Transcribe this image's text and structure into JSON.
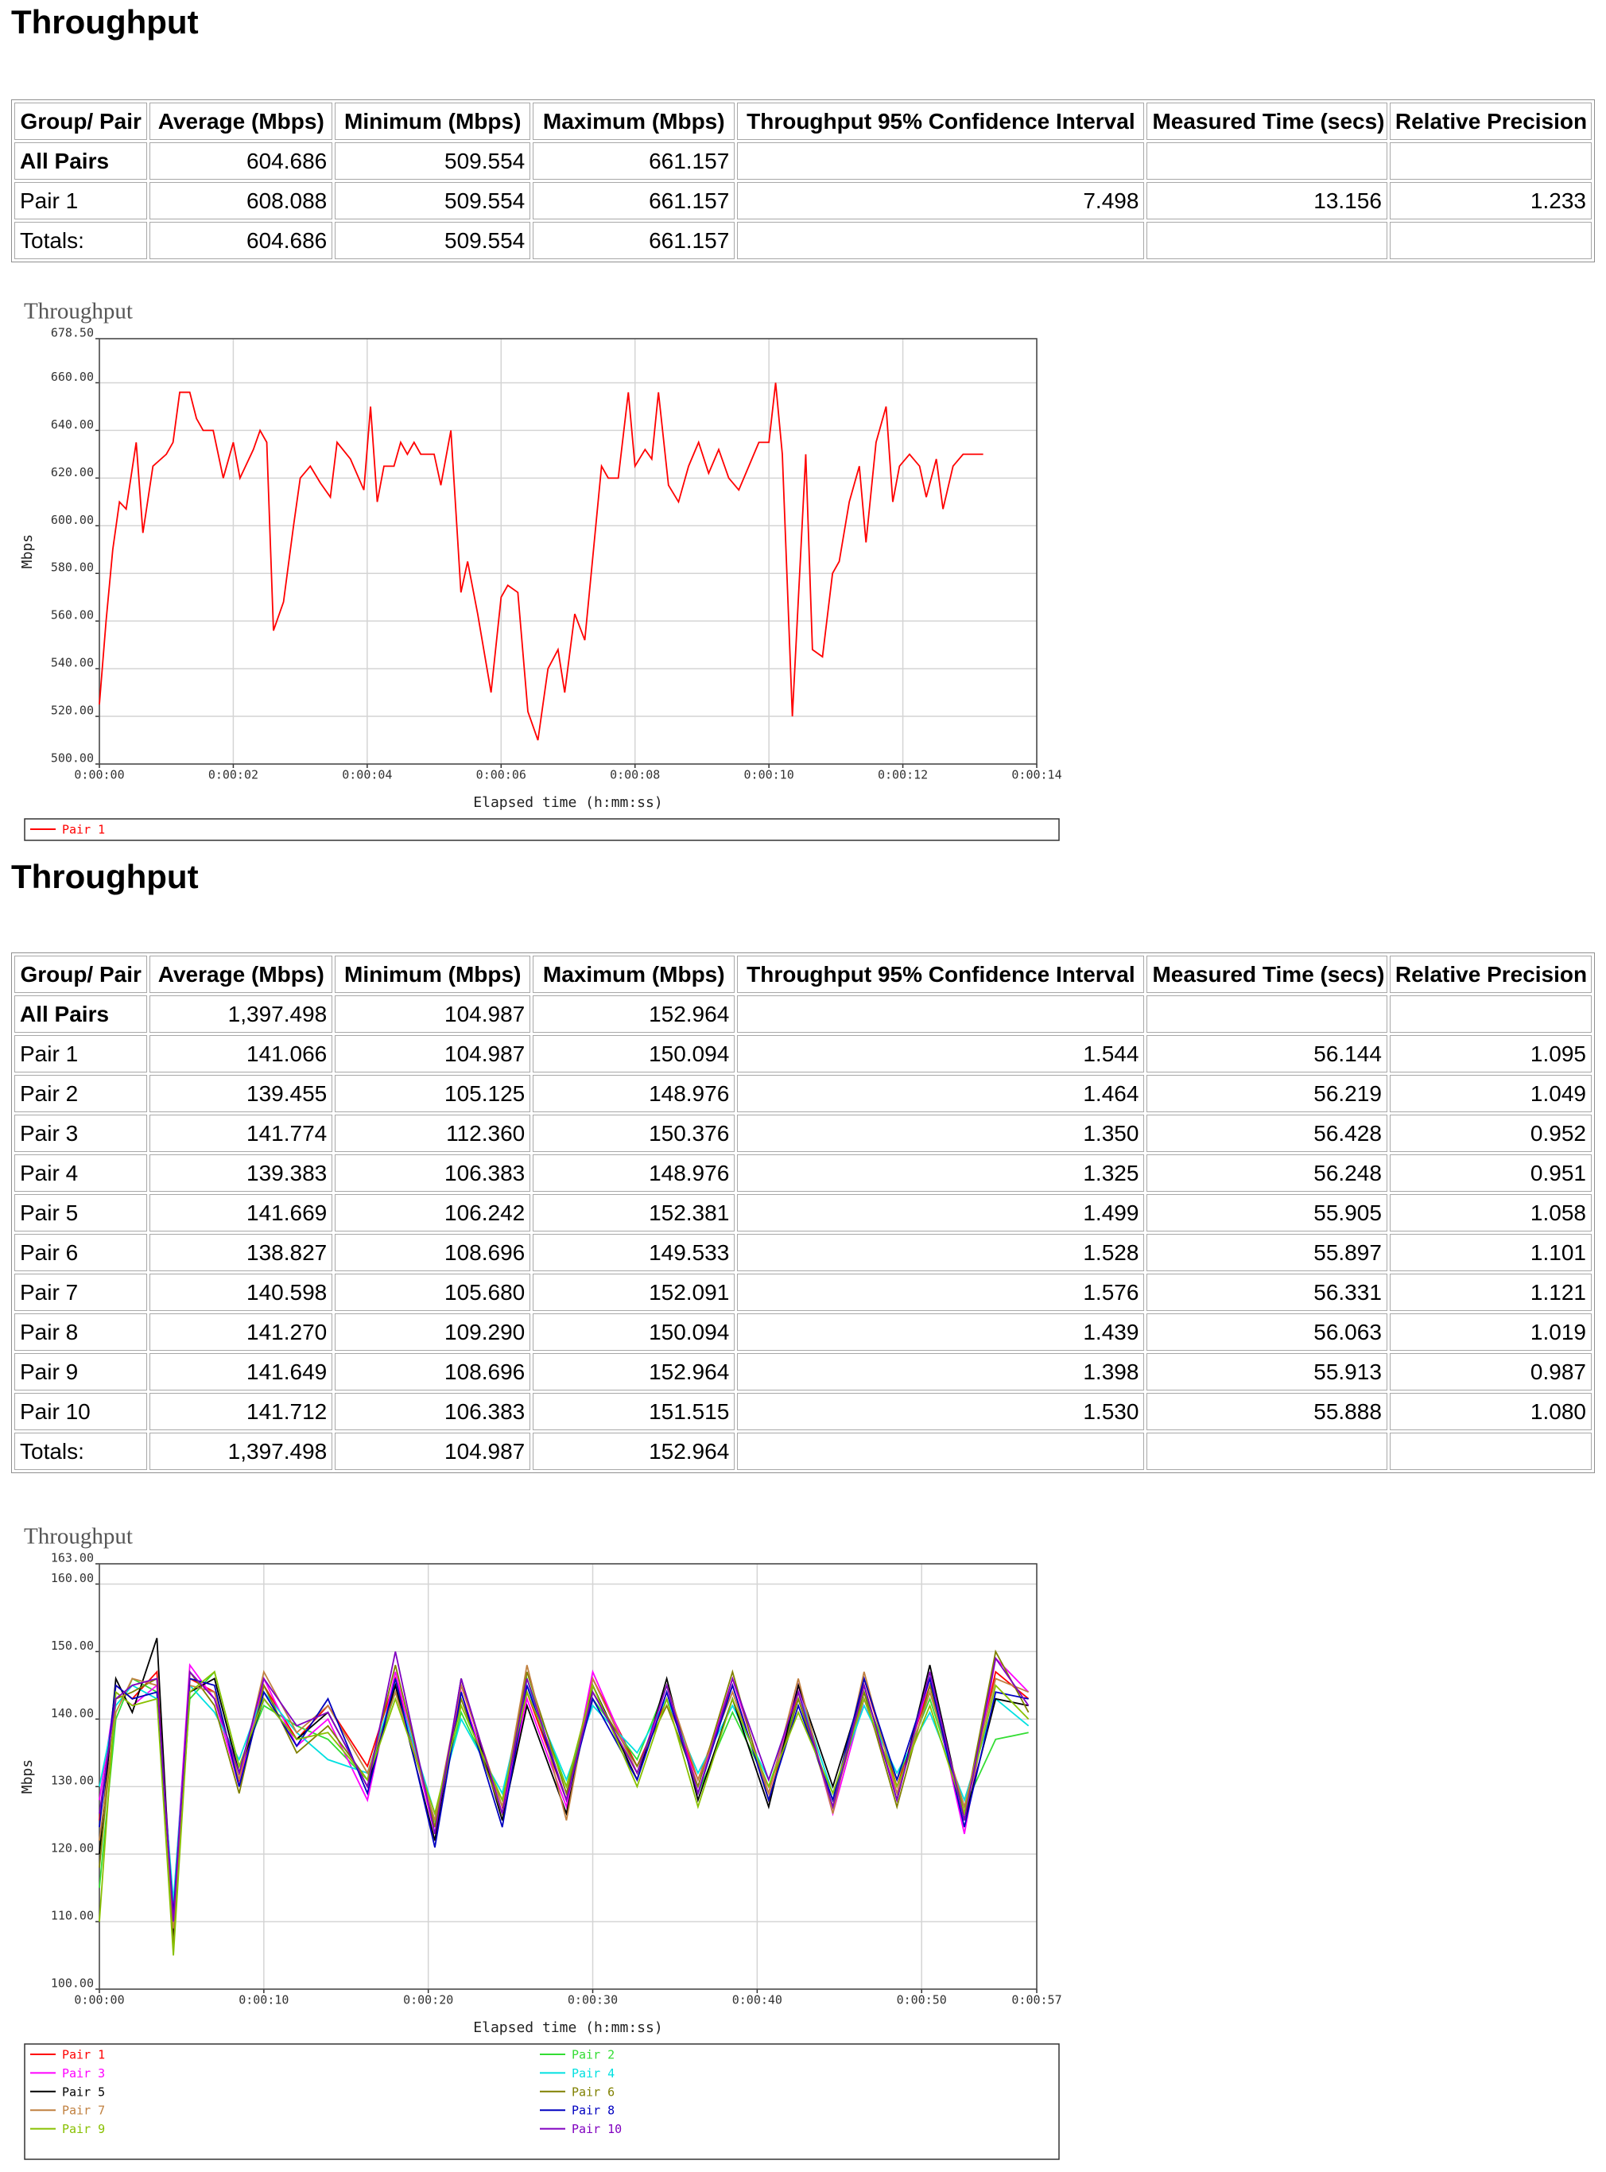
{
  "sections": [
    {
      "title": "Throughput",
      "table": {
        "header": [
          "Group/ Pair",
          "Average (Mbps)",
          "Minimum (Mbps)",
          "Maximum (Mbps)",
          "Throughput 95% Confidence Interval",
          "Measured Time (secs)",
          "Relative Precision"
        ],
        "rows": [
          [
            "All Pairs",
            "604.686",
            "509.554",
            "661.157",
            null,
            null,
            null
          ],
          [
            "Pair 1",
            "608.088",
            "509.554",
            "661.157",
            "7.498",
            "13.156",
            "1.233"
          ],
          [
            "Totals:",
            "604.686",
            "509.554",
            "661.157",
            null,
            null,
            null
          ]
        ]
      }
    },
    {
      "title": "Throughput",
      "table": {
        "header": [
          "Group/ Pair",
          "Average (Mbps)",
          "Minimum (Mbps)",
          "Maximum (Mbps)",
          "Throughput 95% Confidence Interval",
          "Measured Time (secs)",
          "Relative Precision"
        ],
        "rows": [
          [
            "All Pairs",
            "1,397.498",
            "104.987",
            "152.964",
            null,
            null,
            null
          ],
          [
            "Pair 1",
            "141.066",
            "104.987",
            "150.094",
            "1.544",
            "56.144",
            "1.095"
          ],
          [
            "Pair 2",
            "139.455",
            "105.125",
            "148.976",
            "1.464",
            "56.219",
            "1.049"
          ],
          [
            "Pair 3",
            "141.774",
            "112.360",
            "150.376",
            "1.350",
            "56.428",
            "0.952"
          ],
          [
            "Pair 4",
            "139.383",
            "106.383",
            "148.976",
            "1.325",
            "56.248",
            "0.951"
          ],
          [
            "Pair 5",
            "141.669",
            "106.242",
            "152.381",
            "1.499",
            "55.905",
            "1.058"
          ],
          [
            "Pair 6",
            "138.827",
            "108.696",
            "149.533",
            "1.528",
            "55.897",
            "1.101"
          ],
          [
            "Pair 7",
            "140.598",
            "105.680",
            "152.091",
            "1.576",
            "56.331",
            "1.121"
          ],
          [
            "Pair 8",
            "141.270",
            "109.290",
            "150.094",
            "1.439",
            "56.063",
            "1.019"
          ],
          [
            "Pair 9",
            "141.649",
            "108.696",
            "152.964",
            "1.398",
            "55.913",
            "0.987"
          ],
          [
            "Pair 10",
            "141.712",
            "106.383",
            "151.515",
            "1.530",
            "55.888",
            "1.080"
          ],
          [
            "Totals:",
            "1,397.498",
            "104.987",
            "152.964",
            null,
            null,
            null
          ]
        ]
      }
    }
  ],
  "chart_data": [
    {
      "type": "line",
      "title": "Throughput",
      "x_label": "Elapsed time (h:mm:ss)",
      "y_label": "Mbps",
      "grid": true,
      "legend": "bottom",
      "xlim": [
        0,
        14
      ],
      "xticks": [
        {
          "value": 0,
          "label": "0:00:00"
        },
        {
          "value": 2,
          "label": "0:00:02"
        },
        {
          "value": 4,
          "label": "0:00:04"
        },
        {
          "value": 6,
          "label": "0:00:06"
        },
        {
          "value": 8,
          "label": "0:00:08"
        },
        {
          "value": 10,
          "label": "0:00:10"
        },
        {
          "value": 12,
          "label": "0:00:12"
        },
        {
          "value": 14,
          "label": "0:00:14"
        }
      ],
      "ylim": [
        500,
        678.5
      ],
      "yticks": [
        {
          "value": 500,
          "label": "500.00"
        },
        {
          "value": 520,
          "label": "520.00"
        },
        {
          "value": 540,
          "label": "540.00"
        },
        {
          "value": 560,
          "label": "560.00"
        },
        {
          "value": 580,
          "label": "580.00"
        },
        {
          "value": 600,
          "label": "600.00"
        },
        {
          "value": 620,
          "label": "620.00"
        },
        {
          "value": 640,
          "label": "640.00"
        },
        {
          "value": 660,
          "label": "660.00"
        },
        {
          "value": 678.5,
          "label": "678.50"
        }
      ],
      "x": [
        0,
        0.1,
        0.2,
        0.3,
        0.4,
        0.55,
        0.65,
        0.8,
        1.0,
        1.1,
        1.2,
        1.35,
        1.45,
        1.55,
        1.7,
        1.85,
        2.0,
        2.1,
        2.3,
        2.4,
        2.5,
        2.6,
        2.75,
        2.9,
        3.0,
        3.15,
        3.3,
        3.45,
        3.55,
        3.75,
        3.95,
        4.05,
        4.15,
        4.25,
        4.4,
        4.5,
        4.6,
        4.7,
        4.8,
        5.0,
        5.1,
        5.25,
        5.4,
        5.5,
        5.65,
        5.85,
        6.0,
        6.1,
        6.25,
        6.4,
        6.55,
        6.7,
        6.85,
        6.95,
        7.1,
        7.25,
        7.5,
        7.6,
        7.75,
        7.9,
        8.0,
        8.15,
        8.25,
        8.35,
        8.5,
        8.65,
        8.8,
        8.95,
        9.1,
        9.25,
        9.4,
        9.55,
        9.7,
        9.85,
        10.0,
        10.1,
        10.2,
        10.35,
        10.55,
        10.65,
        10.8,
        10.95,
        11.05,
        11.2,
        11.35,
        11.45,
        11.6,
        11.75,
        11.85,
        11.95,
        12.1,
        12.25,
        12.35,
        12.5,
        12.6,
        12.75,
        12.9,
        13.0,
        13.2
      ],
      "series": [
        {
          "name": "Pair 1",
          "color": "#ff0000",
          "values": [
            525,
            560,
            590,
            610,
            607,
            635,
            597,
            625,
            630,
            635,
            656,
            656,
            645,
            640,
            640,
            620,
            635,
            620,
            632,
            640,
            635,
            556,
            568,
            600,
            620,
            625,
            618,
            612,
            635,
            628,
            615,
            650,
            610,
            625,
            625,
            635,
            630,
            635,
            630,
            630,
            617,
            640,
            572,
            585,
            563,
            530,
            570,
            575,
            572,
            522,
            510,
            540,
            548,
            530,
            563,
            552,
            625,
            620,
            620,
            656,
            625,
            632,
            628,
            656,
            617,
            610,
            625,
            635,
            622,
            632,
            620,
            615,
            625,
            635,
            635,
            660,
            630,
            520,
            630,
            548,
            545,
            580,
            585,
            610,
            625,
            593,
            635,
            650,
            610,
            625,
            630,
            625,
            612,
            628,
            607,
            625,
            630,
            630,
            630
          ]
        }
      ]
    },
    {
      "type": "line",
      "title": "Throughput",
      "x_label": "Elapsed time (h:mm:ss)",
      "y_label": "Mbps",
      "grid": true,
      "legend": "bottom",
      "xlim": [
        0,
        57
      ],
      "xticks": [
        {
          "value": 0,
          "label": "0:00:00"
        },
        {
          "value": 10,
          "label": "0:00:10"
        },
        {
          "value": 20,
          "label": "0:00:20"
        },
        {
          "value": 30,
          "label": "0:00:30"
        },
        {
          "value": 40,
          "label": "0:00:40"
        },
        {
          "value": 50,
          "label": "0:00:50"
        },
        {
          "value": 57,
          "label": "0:00:57"
        }
      ],
      "ylim": [
        100,
        163
      ],
      "yticks": [
        {
          "value": 100,
          "label": "100.00"
        },
        {
          "value": 110,
          "label": "110.00"
        },
        {
          "value": 120,
          "label": "120.00"
        },
        {
          "value": 130,
          "label": "130.00"
        },
        {
          "value": 140,
          "label": "140.00"
        },
        {
          "value": 150,
          "label": "150.00"
        },
        {
          "value": 160,
          "label": "160.00"
        },
        {
          "value": 163,
          "label": "163.00"
        }
      ],
      "x": [
        0,
        1,
        2,
        3.5,
        4.5,
        5.5,
        7,
        8.5,
        10,
        12,
        13.9,
        16.3,
        18,
        20.4,
        22,
        24.5,
        26,
        28.4,
        30,
        32.7,
        34.5,
        36.4,
        38.5,
        40.7,
        42.5,
        44.6,
        46.5,
        48.5,
        50.5,
        52.6,
        54.5,
        56.5
      ],
      "series": [
        {
          "name": "Pair 1",
          "color": "#ff0000",
          "values": [
            125,
            145,
            143,
            147,
            108,
            146,
            144,
            131,
            145,
            137,
            142,
            133,
            146,
            124,
            145,
            127,
            144,
            128,
            146,
            133,
            143,
            131,
            145,
            128,
            144,
            127,
            146,
            130,
            145,
            126,
            147,
            143
          ]
        },
        {
          "name": "Pair 2",
          "color": "#33dd33",
          "values": [
            115,
            140,
            146,
            144,
            110,
            143,
            147,
            133,
            142,
            139,
            137,
            131,
            144,
            125,
            141,
            128,
            146,
            130,
            143,
            134,
            145,
            129,
            141,
            130,
            143,
            128,
            144,
            131,
            143,
            127,
            137,
            138
          ]
        },
        {
          "name": "Pair 3",
          "color": "#ff00ff",
          "values": [
            128,
            144,
            142,
            145,
            112,
            148,
            143,
            130,
            146,
            136,
            140,
            128,
            147,
            123,
            144,
            126,
            143,
            127,
            147,
            132,
            144,
            130,
            146,
            129,
            145,
            126,
            143,
            129,
            146,
            123,
            149,
            144
          ]
        },
        {
          "name": "Pair 4",
          "color": "#00e0e0",
          "values": [
            130,
            142,
            145,
            143,
            113,
            145,
            141,
            134,
            144,
            138,
            134,
            132,
            145,
            126,
            140,
            129,
            145,
            131,
            142,
            135,
            143,
            132,
            142,
            131,
            144,
            129,
            142,
            132,
            141,
            128,
            143,
            139
          ]
        },
        {
          "name": "Pair 5",
          "color": "#000000",
          "values": [
            120,
            146,
            141,
            152,
            107,
            144,
            146,
            132,
            143,
            137,
            141,
            130,
            145,
            122,
            146,
            125,
            142,
            126,
            145,
            131,
            146,
            128,
            143,
            127,
            145,
            130,
            145,
            128,
            148,
            125,
            143,
            142
          ]
        },
        {
          "name": "Pair 6",
          "color": "#808000",
          "values": [
            118,
            143,
            144,
            146,
            106,
            147,
            142,
            129,
            145,
            135,
            139,
            131,
            148,
            124,
            143,
            126,
            147,
            129,
            144,
            133,
            142,
            130,
            147,
            128,
            143,
            127,
            144,
            127,
            145,
            126,
            150,
            141
          ]
        },
        {
          "name": "Pair 7",
          "color": "#c08040",
          "values": [
            122,
            141,
            146,
            145,
            109,
            145,
            144,
            131,
            147,
            138,
            142,
            132,
            144,
            125,
            145,
            127,
            148,
            125,
            146,
            132,
            145,
            131,
            144,
            129,
            146,
            126,
            147,
            129,
            144,
            127,
            146,
            144
          ]
        },
        {
          "name": "Pair 8",
          "color": "#0000c0",
          "values": [
            124,
            145,
            143,
            144,
            111,
            146,
            145,
            130,
            144,
            136,
            143,
            129,
            146,
            121,
            144,
            124,
            145,
            128,
            143,
            131,
            144,
            129,
            145,
            128,
            142,
            128,
            146,
            131,
            146,
            124,
            144,
            143
          ]
        },
        {
          "name": "Pair 9",
          "color": "#88c000",
          "values": [
            110,
            144,
            142,
            143,
            105,
            144,
            147,
            133,
            143,
            137,
            138,
            131,
            143,
            126,
            142,
            128,
            144,
            130,
            145,
            130,
            143,
            127,
            143,
            130,
            141,
            129,
            143,
            130,
            142,
            126,
            145,
            140
          ]
        },
        {
          "name": "Pair 10",
          "color": "#8000c0",
          "values": [
            126,
            143,
            145,
            146,
            110,
            147,
            143,
            132,
            146,
            139,
            141,
            130,
            150,
            123,
            146,
            126,
            146,
            128,
            144,
            132,
            145,
            129,
            146,
            131,
            144,
            127,
            145,
            128,
            147,
            125,
            149,
            142
          ]
        }
      ]
    }
  ]
}
